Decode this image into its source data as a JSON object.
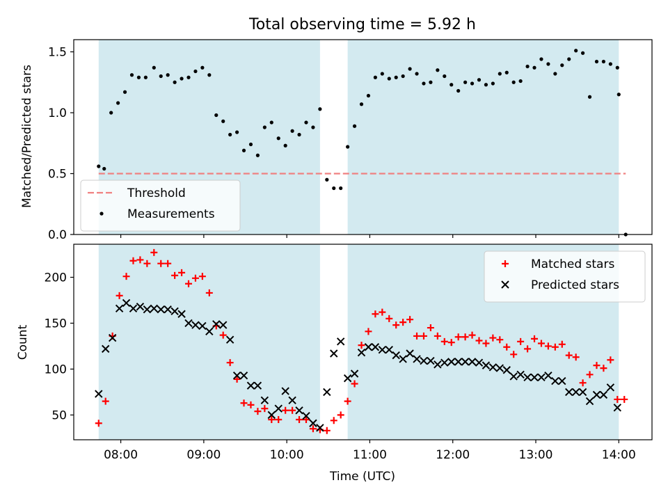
{
  "figure_title": "Total observing time = 5.92 h",
  "chart_data": [
    {
      "type": "scatter",
      "title": "Total observing time = 5.92 h",
      "xlabel": "",
      "ylabel": "Matched/Predicted stars",
      "xlim": [
        "07:26",
        "14:24"
      ],
      "ylim": [
        0,
        1.6
      ],
      "yticks": [
        "0.0",
        "0.5",
        "1.0",
        "1.5"
      ],
      "shaded_intervals": [
        [
          "07:44",
          "10:24"
        ],
        [
          "10:44",
          "14:00"
        ]
      ],
      "shade_color": "#d3eaf0",
      "legend_position": "lower-left",
      "series": [
        {
          "name": "Threshold",
          "kind": "dashed-line",
          "color": "#f08080",
          "x": [
            "07:44",
            "14:05"
          ],
          "y": [
            0.5,
            0.5
          ]
        },
        {
          "name": "Measurements",
          "kind": "dot",
          "color": "#000000",
          "points": [
            [
              "07:44",
              0.56
            ],
            [
              "07:48",
              0.54
            ],
            [
              "07:53",
              1.0
            ],
            [
              "07:58",
              1.08
            ],
            [
              "08:03",
              1.17
            ],
            [
              "08:08",
              1.31
            ],
            [
              "08:13",
              1.29
            ],
            [
              "08:18",
              1.29
            ],
            [
              "08:24",
              1.37
            ],
            [
              "08:29",
              1.3
            ],
            [
              "08:34",
              1.31
            ],
            [
              "08:39",
              1.25
            ],
            [
              "08:44",
              1.28
            ],
            [
              "08:49",
              1.29
            ],
            [
              "08:54",
              1.34
            ],
            [
              "08:59",
              1.37
            ],
            [
              "09:04",
              1.31
            ],
            [
              "09:09",
              0.98
            ],
            [
              "09:14",
              0.93
            ],
            [
              "09:19",
              0.82
            ],
            [
              "09:24",
              0.84
            ],
            [
              "09:29",
              0.69
            ],
            [
              "09:34",
              0.74
            ],
            [
              "09:39",
              0.65
            ],
            [
              "09:44",
              0.88
            ],
            [
              "09:49",
              0.92
            ],
            [
              "09:54",
              0.79
            ],
            [
              "09:59",
              0.73
            ],
            [
              "10:04",
              0.85
            ],
            [
              "10:09",
              0.82
            ],
            [
              "10:14",
              0.92
            ],
            [
              "10:19",
              0.88
            ],
            [
              "10:24",
              1.03
            ],
            [
              "10:29",
              0.45
            ],
            [
              "10:34",
              0.38
            ],
            [
              "10:39",
              0.38
            ],
            [
              "10:44",
              0.72
            ],
            [
              "10:49",
              0.89
            ],
            [
              "10:54",
              1.07
            ],
            [
              "10:59",
              1.14
            ],
            [
              "11:04",
              1.29
            ],
            [
              "11:09",
              1.32
            ],
            [
              "11:14",
              1.28
            ],
            [
              "11:19",
              1.29
            ],
            [
              "11:24",
              1.3
            ],
            [
              "11:29",
              1.36
            ],
            [
              "11:34",
              1.32
            ],
            [
              "11:39",
              1.24
            ],
            [
              "11:44",
              1.25
            ],
            [
              "11:49",
              1.35
            ],
            [
              "11:54",
              1.3
            ],
            [
              "11:59",
              1.23
            ],
            [
              "12:04",
              1.18
            ],
            [
              "12:09",
              1.25
            ],
            [
              "12:14",
              1.24
            ],
            [
              "12:19",
              1.27
            ],
            [
              "12:24",
              1.23
            ],
            [
              "12:29",
              1.24
            ],
            [
              "12:34",
              1.32
            ],
            [
              "12:39",
              1.33
            ],
            [
              "12:44",
              1.25
            ],
            [
              "12:49",
              1.26
            ],
            [
              "12:54",
              1.38
            ],
            [
              "12:59",
              1.37
            ],
            [
              "13:04",
              1.44
            ],
            [
              "13:09",
              1.4
            ],
            [
              "13:14",
              1.32
            ],
            [
              "13:19",
              1.39
            ],
            [
              "13:24",
              1.44
            ],
            [
              "13:29",
              1.51
            ],
            [
              "13:34",
              1.49
            ],
            [
              "13:39",
              1.13
            ],
            [
              "13:44",
              1.42
            ],
            [
              "13:49",
              1.42
            ],
            [
              "13:54",
              1.4
            ],
            [
              "13:59",
              1.37
            ],
            [
              "14:00",
              1.15
            ],
            [
              "14:05",
              0.0
            ]
          ]
        }
      ]
    },
    {
      "type": "scatter",
      "title": "",
      "xlabel": "Time (UTC)",
      "ylabel": "Count",
      "xlim": [
        "07:26",
        "14:24"
      ],
      "ylim": [
        23,
        236
      ],
      "xticks": [
        "08:00",
        "09:00",
        "10:00",
        "11:00",
        "12:00",
        "13:00",
        "14:00"
      ],
      "yticks": [
        "50",
        "100",
        "150",
        "200"
      ],
      "shaded_intervals": [
        [
          "07:44",
          "10:24"
        ],
        [
          "10:44",
          "14:00"
        ]
      ],
      "legend_position": "top-right",
      "series": [
        {
          "name": "Matched stars",
          "kind": "plus",
          "color": "#ff0000",
          "points": [
            [
              "07:44",
              41
            ],
            [
              "07:49",
              65
            ],
            [
              "07:54",
              136
            ],
            [
              "07:59",
              180
            ],
            [
              "08:04",
              201
            ],
            [
              "08:09",
              218
            ],
            [
              "08:14",
              219
            ],
            [
              "08:19",
              215
            ],
            [
              "08:24",
              227
            ],
            [
              "08:29",
              215
            ],
            [
              "08:34",
              215
            ],
            [
              "08:39",
              202
            ],
            [
              "08:44",
              205
            ],
            [
              "08:49",
              193
            ],
            [
              "08:54",
              199
            ],
            [
              "08:59",
              201
            ],
            [
              "09:04",
              183
            ],
            [
              "09:09",
              147
            ],
            [
              "09:14",
              137
            ],
            [
              "09:19",
              107
            ],
            [
              "09:24",
              89
            ],
            [
              "09:29",
              63
            ],
            [
              "09:34",
              61
            ],
            [
              "09:39",
              54
            ],
            [
              "09:44",
              57
            ],
            [
              "09:49",
              45
            ],
            [
              "09:54",
              45
            ],
            [
              "09:59",
              55
            ],
            [
              "10:04",
              55
            ],
            [
              "10:09",
              45
            ],
            [
              "10:14",
              45
            ],
            [
              "10:19",
              35
            ],
            [
              "10:24",
              34
            ],
            [
              "10:29",
              33
            ],
            [
              "10:34",
              44
            ],
            [
              "10:39",
              50
            ],
            [
              "10:44",
              65
            ],
            [
              "10:49",
              84
            ],
            [
              "10:54",
              126
            ],
            [
              "10:59",
              141
            ],
            [
              "11:04",
              160
            ],
            [
              "11:09",
              162
            ],
            [
              "11:14",
              155
            ],
            [
              "11:19",
              148
            ],
            [
              "11:24",
              151
            ],
            [
              "11:29",
              154
            ],
            [
              "11:34",
              136
            ],
            [
              "11:39",
              136
            ],
            [
              "11:44",
              145
            ],
            [
              "11:49",
              136
            ],
            [
              "11:54",
              130
            ],
            [
              "11:59",
              129
            ],
            [
              "12:04",
              135
            ],
            [
              "12:09",
              135
            ],
            [
              "12:14",
              137
            ],
            [
              "12:19",
              131
            ],
            [
              "12:24",
              128
            ],
            [
              "12:29",
              134
            ],
            [
              "12:34",
              132
            ],
            [
              "12:39",
              124
            ],
            [
              "12:44",
              116
            ],
            [
              "12:49",
              130
            ],
            [
              "12:54",
              122
            ],
            [
              "12:59",
              133
            ],
            [
              "13:04",
              128
            ],
            [
              "13:09",
              125
            ],
            [
              "13:14",
              124
            ],
            [
              "13:19",
              127
            ],
            [
              "13:24",
              115
            ],
            [
              "13:29",
              113
            ],
            [
              "13:34",
              85
            ],
            [
              "13:39",
              94
            ],
            [
              "13:44",
              104
            ],
            [
              "13:49",
              101
            ],
            [
              "13:54",
              110
            ],
            [
              "13:59",
              67
            ],
            [
              "14:04",
              67
            ]
          ]
        },
        {
          "name": "Predicted stars",
          "kind": "x",
          "color": "#000000",
          "points": [
            [
              "07:44",
              73
            ],
            [
              "07:49",
              122
            ],
            [
              "07:54",
              134
            ],
            [
              "07:59",
              166
            ],
            [
              "08:04",
              172
            ],
            [
              "08:09",
              166
            ],
            [
              "08:14",
              168
            ],
            [
              "08:19",
              165
            ],
            [
              "08:24",
              166
            ],
            [
              "08:29",
              165
            ],
            [
              "08:34",
              165
            ],
            [
              "08:39",
              163
            ],
            [
              "08:44",
              160
            ],
            [
              "08:49",
              150
            ],
            [
              "08:54",
              148
            ],
            [
              "08:59",
              147
            ],
            [
              "09:04",
              141
            ],
            [
              "09:09",
              149
            ],
            [
              "09:14",
              148
            ],
            [
              "09:19",
              132
            ],
            [
              "09:24",
              93
            ],
            [
              "09:29",
              93
            ],
            [
              "09:34",
              82
            ],
            [
              "09:39",
              82
            ],
            [
              "09:44",
              66
            ],
            [
              "09:49",
              50
            ],
            [
              "09:54",
              57
            ],
            [
              "09:59",
              76
            ],
            [
              "10:04",
              66
            ],
            [
              "10:09",
              55
            ],
            [
              "10:14",
              49
            ],
            [
              "10:19",
              41
            ],
            [
              "10:24",
              36
            ],
            [
              "10:29",
              75
            ],
            [
              "10:34",
              117
            ],
            [
              "10:39",
              130
            ],
            [
              "10:44",
              90
            ],
            [
              "10:49",
              95
            ],
            [
              "10:54",
              118
            ],
            [
              "10:59",
              124
            ],
            [
              "11:04",
              124
            ],
            [
              "11:09",
              121
            ],
            [
              "11:14",
              121
            ],
            [
              "11:19",
              115
            ],
            [
              "11:24",
              111
            ],
            [
              "11:29",
              117
            ],
            [
              "11:34",
              111
            ],
            [
              "11:39",
              109
            ],
            [
              "11:44",
              109
            ],
            [
              "11:49",
              105
            ],
            [
              "11:54",
              107
            ],
            [
              "11:59",
              108
            ],
            [
              "12:04",
              108
            ],
            [
              "12:09",
              108
            ],
            [
              "12:14",
              108
            ],
            [
              "12:19",
              107
            ],
            [
              "12:24",
              104
            ],
            [
              "12:29",
              102
            ],
            [
              "12:34",
              101
            ],
            [
              "12:39",
              99
            ],
            [
              "12:44",
              92
            ],
            [
              "12:49",
              94
            ],
            [
              "12:54",
              91
            ],
            [
              "12:59",
              91
            ],
            [
              "13:04",
              91
            ],
            [
              "13:09",
              93
            ],
            [
              "13:14",
              87
            ],
            [
              "13:19",
              87
            ],
            [
              "13:24",
              75
            ],
            [
              "13:29",
              75
            ],
            [
              "13:34",
              75
            ],
            [
              "13:39",
              65
            ],
            [
              "13:44",
              72
            ],
            [
              "13:49",
              72
            ],
            [
              "13:54",
              80
            ],
            [
              "13:59",
              58
            ]
          ]
        }
      ]
    }
  ]
}
